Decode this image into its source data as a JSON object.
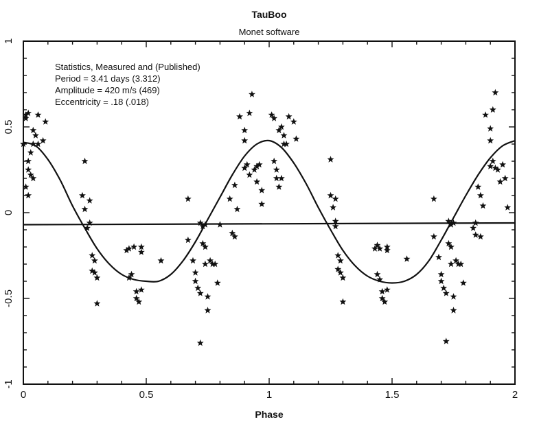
{
  "chart_data": {
    "type": "scatter",
    "title": "TauBoo",
    "subtitle": "Monet software",
    "xlabel": "Phase",
    "ylabel": "",
    "xlim": [
      0,
      2
    ],
    "ylim": [
      -1,
      1
    ],
    "x_ticks": [
      "0",
      "0.5",
      "1",
      "1.5",
      "2"
    ],
    "y_ticks": [
      "-1",
      "-0.5",
      "0",
      "0.5",
      "1"
    ],
    "grid": false,
    "annotations": [
      "Statistics, Measured and (Published)",
      "Period = 3.41 days (3.312)",
      "Amplitude = 420 m/s (469)",
      "Eccentricity = .18 (.018)"
    ],
    "baseline": {
      "x": [
        0,
        2
      ],
      "y": [
        -0.07,
        -0.06
      ]
    },
    "fit_curve": {
      "x": [
        0,
        0.05,
        0.1,
        0.15,
        0.2,
        0.25,
        0.3,
        0.35,
        0.4,
        0.45,
        0.5,
        0.55,
        0.6,
        0.65,
        0.7,
        0.75,
        0.8,
        0.85,
        0.9,
        0.95,
        1.0,
        1.05,
        1.1,
        1.15,
        1.2,
        1.25,
        1.3,
        1.35,
        1.4,
        1.45,
        1.5,
        1.55,
        1.6,
        1.65,
        1.7,
        1.75,
        1.8,
        1.85,
        1.9,
        1.95,
        2.0
      ],
      "y": [
        0.41,
        0.39,
        0.31,
        0.19,
        0.04,
        -0.09,
        -0.21,
        -0.3,
        -0.36,
        -0.39,
        -0.4,
        -0.4,
        -0.36,
        -0.28,
        -0.17,
        -0.04,
        0.09,
        0.22,
        0.33,
        0.4,
        0.42,
        0.38,
        0.29,
        0.17,
        0.03,
        -0.1,
        -0.22,
        -0.31,
        -0.37,
        -0.4,
        -0.41,
        -0.4,
        -0.36,
        -0.28,
        -0.16,
        -0.03,
        0.1,
        0.22,
        0.32,
        0.39,
        0.42
      ]
    },
    "series": [
      {
        "marker": "star",
        "points": [
          [
            0.01,
            0.57
          ],
          [
            0.01,
            0.55
          ],
          [
            0.02,
            0.58
          ],
          [
            0.0,
            0.4
          ],
          [
            0.02,
            0.3
          ],
          [
            0.02,
            0.25
          ],
          [
            0.03,
            0.22
          ],
          [
            0.02,
            0.1
          ],
          [
            0.01,
            0.15
          ],
          [
            0.04,
            0.48
          ],
          [
            0.05,
            0.45
          ],
          [
            0.04,
            0.4
          ],
          [
            0.06,
            0.4
          ],
          [
            0.06,
            0.57
          ],
          [
            0.09,
            0.53
          ],
          [
            0.08,
            0.42
          ],
          [
            0.04,
            0.2
          ],
          [
            0.03,
            0.35
          ],
          [
            0.25,
            0.3
          ],
          [
            0.24,
            0.1
          ],
          [
            0.25,
            0.02
          ],
          [
            0.27,
            0.07
          ],
          [
            0.26,
            -0.09
          ],
          [
            0.27,
            -0.06
          ],
          [
            0.28,
            -0.25
          ],
          [
            0.29,
            -0.28
          ],
          [
            0.28,
            -0.34
          ],
          [
            0.29,
            -0.35
          ],
          [
            0.3,
            -0.38
          ],
          [
            0.3,
            -0.53
          ],
          [
            0.42,
            -0.22
          ],
          [
            0.43,
            -0.21
          ],
          [
            0.45,
            -0.2
          ],
          [
            0.44,
            -0.36
          ],
          [
            0.43,
            -0.38
          ],
          [
            0.46,
            -0.5
          ],
          [
            0.47,
            -0.52
          ],
          [
            0.48,
            -0.45
          ],
          [
            0.46,
            -0.46
          ],
          [
            0.48,
            -0.2
          ],
          [
            0.48,
            -0.23
          ],
          [
            0.56,
            -0.28
          ],
          [
            0.67,
            0.08
          ],
          [
            0.67,
            -0.16
          ],
          [
            0.69,
            -0.28
          ],
          [
            0.7,
            -0.35
          ],
          [
            0.7,
            -0.4
          ],
          [
            0.71,
            -0.44
          ],
          [
            0.72,
            -0.47
          ],
          [
            0.72,
            -0.76
          ],
          [
            0.72,
            -0.06
          ],
          [
            0.73,
            -0.08
          ],
          [
            0.74,
            -0.07
          ],
          [
            0.73,
            -0.18
          ],
          [
            0.74,
            -0.2
          ],
          [
            0.74,
            -0.3
          ],
          [
            0.75,
            -0.49
          ],
          [
            0.75,
            -0.57
          ],
          [
            0.76,
            -0.28
          ],
          [
            0.77,
            -0.3
          ],
          [
            0.78,
            -0.3
          ],
          [
            0.79,
            -0.41
          ],
          [
            0.8,
            -0.07
          ],
          [
            0.84,
            0.08
          ],
          [
            0.85,
            -0.12
          ],
          [
            0.86,
            -0.14
          ],
          [
            0.86,
            0.16
          ],
          [
            0.87,
            0.02
          ],
          [
            0.88,
            0.56
          ],
          [
            0.9,
            0.48
          ],
          [
            0.9,
            0.42
          ],
          [
            0.9,
            0.26
          ],
          [
            0.91,
            0.28
          ],
          [
            0.92,
            0.22
          ],
          [
            0.92,
            0.58
          ],
          [
            0.93,
            0.69
          ],
          [
            0.94,
            0.25
          ],
          [
            0.95,
            0.18
          ],
          [
            0.95,
            0.27
          ],
          [
            0.96,
            0.28
          ],
          [
            0.97,
            0.05
          ],
          [
            0.97,
            0.13
          ],
          [
            1.01,
            0.57
          ],
          [
            1.02,
            0.55
          ],
          [
            1.02,
            0.3
          ],
          [
            1.03,
            0.25
          ],
          [
            1.03,
            0.2
          ],
          [
            1.04,
            0.15
          ],
          [
            1.04,
            0.48
          ],
          [
            1.05,
            0.5
          ],
          [
            1.06,
            0.45
          ],
          [
            1.06,
            0.4
          ],
          [
            1.07,
            0.4
          ],
          [
            1.08,
            0.56
          ],
          [
            1.1,
            0.53
          ],
          [
            1.11,
            0.43
          ],
          [
            1.05,
            0.2
          ],
          [
            1.25,
            0.31
          ],
          [
            1.25,
            0.1
          ],
          [
            1.26,
            0.03
          ],
          [
            1.27,
            0.08
          ],
          [
            1.27,
            -0.08
          ],
          [
            1.27,
            -0.05
          ],
          [
            1.28,
            -0.25
          ],
          [
            1.29,
            -0.28
          ],
          [
            1.28,
            -0.33
          ],
          [
            1.29,
            -0.35
          ],
          [
            1.3,
            -0.38
          ],
          [
            1.3,
            -0.52
          ],
          [
            1.43,
            -0.21
          ],
          [
            1.44,
            -0.19
          ],
          [
            1.45,
            -0.21
          ],
          [
            1.44,
            -0.36
          ],
          [
            1.45,
            -0.39
          ],
          [
            1.46,
            -0.5
          ],
          [
            1.47,
            -0.52
          ],
          [
            1.48,
            -0.45
          ],
          [
            1.46,
            -0.46
          ],
          [
            1.48,
            -0.2
          ],
          [
            1.48,
            -0.22
          ],
          [
            1.56,
            -0.27
          ],
          [
            1.67,
            0.08
          ],
          [
            1.67,
            -0.14
          ],
          [
            1.69,
            -0.26
          ],
          [
            1.7,
            -0.36
          ],
          [
            1.7,
            -0.4
          ],
          [
            1.71,
            -0.44
          ],
          [
            1.72,
            -0.47
          ],
          [
            1.72,
            -0.75
          ],
          [
            1.73,
            -0.05
          ],
          [
            1.74,
            -0.07
          ],
          [
            1.75,
            -0.06
          ],
          [
            1.73,
            -0.18
          ],
          [
            1.74,
            -0.2
          ],
          [
            1.74,
            -0.3
          ],
          [
            1.75,
            -0.49
          ],
          [
            1.75,
            -0.57
          ],
          [
            1.76,
            -0.28
          ],
          [
            1.77,
            -0.3
          ],
          [
            1.78,
            -0.3
          ],
          [
            1.79,
            -0.41
          ],
          [
            1.83,
            -0.09
          ],
          [
            1.84,
            -0.06
          ],
          [
            1.84,
            -0.13
          ],
          [
            1.86,
            -0.14
          ],
          [
            1.85,
            0.15
          ],
          [
            1.86,
            0.1
          ],
          [
            1.87,
            0.04
          ],
          [
            1.88,
            0.57
          ],
          [
            1.9,
            0.49
          ],
          [
            1.9,
            0.42
          ],
          [
            1.9,
            0.27
          ],
          [
            1.91,
            0.3
          ],
          [
            1.92,
            0.26
          ],
          [
            1.91,
            0.6
          ],
          [
            1.92,
            0.7
          ],
          [
            1.93,
            0.25
          ],
          [
            1.94,
            0.18
          ],
          [
            1.95,
            0.28
          ],
          [
            1.96,
            0.2
          ],
          [
            1.97,
            0.03
          ]
        ]
      }
    ]
  }
}
